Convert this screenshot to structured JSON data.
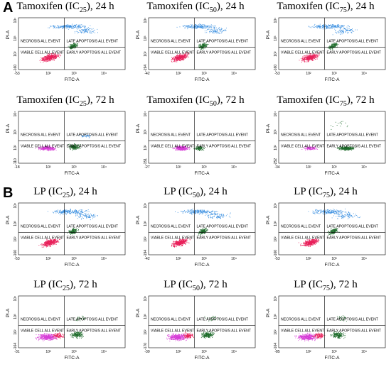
{
  "figure": {
    "sections": [
      {
        "letter": "A",
        "rows": [
          {
            "timepoint": "24 h",
            "plots": [
              {
                "drug": "Tamoxifen",
                "ic": "25",
                "y_min_tick": "-160",
                "x_min_tick": "-53",
                "profile": "early"
              },
              {
                "drug": "Tamoxifen",
                "ic": "50",
                "y_min_tick": "-194",
                "x_min_tick": "-42",
                "profile": "early"
              },
              {
                "drug": "Tamoxifen",
                "ic": "75",
                "y_min_tick": "-160",
                "x_min_tick": "-53",
                "profile": "early"
              }
            ]
          },
          {
            "timepoint": "72 h",
            "plots": [
              {
                "drug": "Tamoxifen",
                "ic": "25",
                "y_min_tick": "-110",
                "x_min_tick": "-18",
                "profile": "late_small"
              },
              {
                "drug": "Tamoxifen",
                "ic": "50",
                "y_min_tick": "-151",
                "x_min_tick": "-27",
                "profile": "late_mid"
              },
              {
                "drug": "Tamoxifen",
                "ic": "75",
                "y_min_tick": "-252",
                "x_min_tick": "-34",
                "profile": "late_right"
              }
            ]
          }
        ]
      },
      {
        "letter": "B",
        "rows": [
          {
            "timepoint": "24 h",
            "plots": [
              {
                "drug": "LP",
                "ic": "25",
                "y_min_tick": "-160",
                "x_min_tick": "-53",
                "profile": "early"
              },
              {
                "drug": "LP",
                "ic": "50",
                "y_min_tick": "-194",
                "x_min_tick": "-42",
                "profile": "early"
              },
              {
                "drug": "LP",
                "ic": "75",
                "y_min_tick": "-160",
                "x_min_tick": "-53",
                "profile": "early"
              }
            ]
          },
          {
            "timepoint": "72 h",
            "plots": [
              {
                "drug": "LP",
                "ic": "25",
                "y_min_tick": "-164",
                "x_min_tick": "-31",
                "profile": "wide"
              },
              {
                "drug": "LP",
                "ic": "50",
                "y_min_tick": "-170",
                "x_min_tick": "-39",
                "profile": "wide"
              },
              {
                "drug": "LP",
                "ic": "75",
                "y_min_tick": "-164",
                "x_min_tick": "-85",
                "profile": "wide"
              }
            ]
          }
        ]
      }
    ],
    "quadrant_labels": {
      "upper_left": "NECROSIS ALL EVENT",
      "upper_right": "LATE APOPTOSIS ALL EVENT",
      "lower_left": "VIABLE CELL ALL EVENT",
      "lower_right": "EARLY APOPTOSIS ALL EVENT"
    },
    "x_axis_label": "FITC-A",
    "y_axis_label": "PI-A",
    "x_ticks": [
      "10²",
      "10³",
      "10⁴"
    ],
    "y_ticks": [
      "10²",
      "10³",
      "10⁴"
    ],
    "ic_prefix": "IC",
    "colors": {
      "viable": "#e8205a",
      "viable_alt": "#d63bd6",
      "early": "#1d6b2a",
      "necrosis": "#3a8fe0",
      "gate": "#000000"
    }
  }
}
